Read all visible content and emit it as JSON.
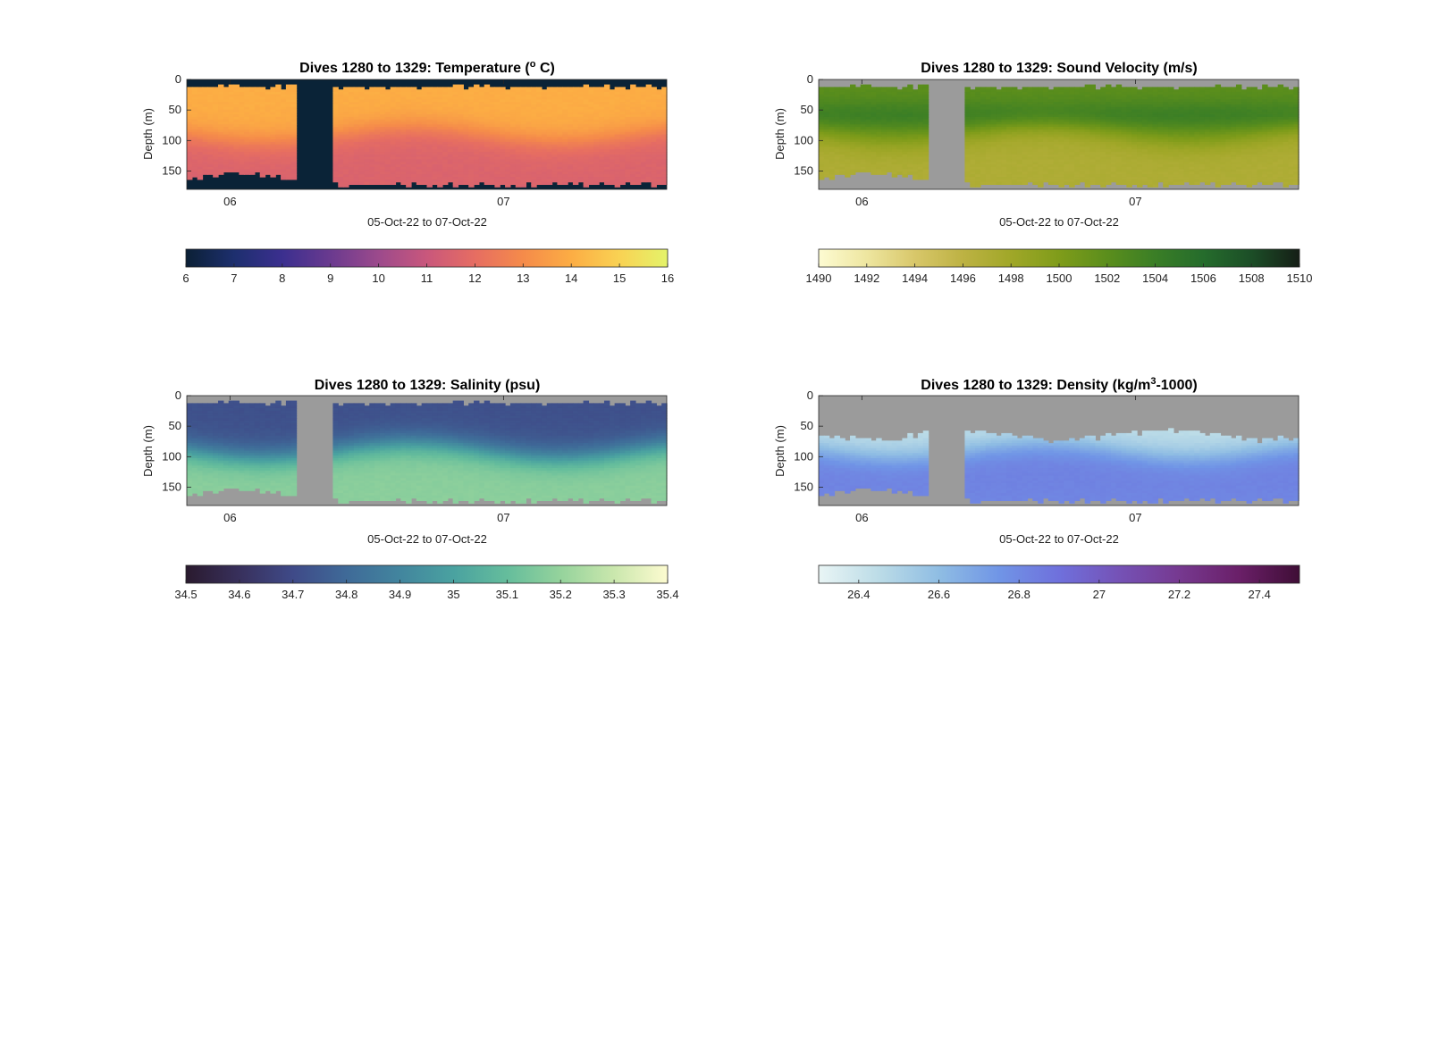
{
  "chart_data": [
    {
      "type": "heatmap",
      "title": "Dives 1280 to 1329: Temperature (° C)",
      "xlabel": "05-Oct-22 to 07-Oct-22",
      "ylabel": "Depth (m)",
      "x_tick_labels": [
        "06",
        "07"
      ],
      "y_ticks": [
        0,
        50,
        100,
        150
      ],
      "ylim": [
        0,
        180
      ],
      "y_reversed": true,
      "colorbar": {
        "min": 6,
        "max": 16,
        "ticks": [
          "6",
          "7",
          "8",
          "9",
          "10",
          "11",
          "12",
          "13",
          "14",
          "15",
          "16"
        ],
        "colors": [
          "#0b2035",
          "#1d2f6e",
          "#3b2f8f",
          "#6a3a8f",
          "#9c4a8c",
          "#c9577c",
          "#e66d62",
          "#f58b4a",
          "#fcad44",
          "#f9d253",
          "#e4f36a"
        ]
      },
      "nan_color": "#0a2337",
      "surface_value": 14.0,
      "thermocline_value": 12.8,
      "deep_value": 11.6
    },
    {
      "type": "heatmap",
      "title": "Dives 1280 to 1329: Sound Velocity (m/s)",
      "xlabel": "05-Oct-22 to 07-Oct-22",
      "ylabel": "Depth (m)",
      "x_tick_labels": [
        "06",
        "07"
      ],
      "y_ticks": [
        0,
        50,
        100,
        150
      ],
      "ylim": [
        0,
        180
      ],
      "y_reversed": true,
      "colorbar": {
        "min": 1490,
        "max": 1510,
        "ticks": [
          "1490",
          "1492",
          "1494",
          "1496",
          "1498",
          "1500",
          "1502",
          "1504",
          "1506",
          "1508",
          "1510"
        ],
        "colors": [
          "#fdfbd2",
          "#eee6a0",
          "#d8c76a",
          "#bdb243",
          "#a0a728",
          "#7f9c1a",
          "#5b8e1c",
          "#3a7e26",
          "#256c2c",
          "#1c4e27",
          "#151e16"
        ]
      },
      "nan_color": "#9b9b9b",
      "surface_value": 1502.0,
      "thermocline_value": 1504.0,
      "deep_value": 1497.0
    },
    {
      "type": "heatmap",
      "title": "Dives 1280 to 1329: Salinity (psu)",
      "xlabel": "05-Oct-22 to 07-Oct-22",
      "ylabel": "Depth (m)",
      "x_tick_labels": [
        "06",
        "07"
      ],
      "y_ticks": [
        0,
        50,
        100,
        150
      ],
      "ylim": [
        0,
        180
      ],
      "y_reversed": true,
      "colorbar": {
        "min": 34.5,
        "max": 35.4,
        "ticks": [
          "34.5",
          "34.6",
          "34.7",
          "34.8",
          "34.9",
          "35",
          "35.1",
          "35.2",
          "35.3",
          "35.4"
        ],
        "colors": [
          "#2a1a2e",
          "#38305c",
          "#3f4a88",
          "#3f6a98",
          "#42859e",
          "#4aa2a0",
          "#65bd9c",
          "#95d39c",
          "#cae7ad",
          "#fdfbd0"
        ]
      },
      "nan_color": "#9b9b9b",
      "surface_value": 34.72,
      "thermocline_value": 34.95,
      "deep_value": 35.18
    },
    {
      "type": "heatmap",
      "title": "Dives 1280 to 1329: Density (kg/m3-1000)",
      "xlabel": "05-Oct-22 to 07-Oct-22",
      "ylabel": "Depth (m)",
      "x_tick_labels": [
        "06",
        "07"
      ],
      "y_ticks": [
        0,
        50,
        100,
        150
      ],
      "ylim": [
        0,
        180
      ],
      "y_reversed": true,
      "colorbar": {
        "min": 26.3,
        "max": 27.5,
        "ticks": [
          "26.4",
          "26.6",
          "26.8",
          "27",
          "27.2",
          "27.4"
        ],
        "colors": [
          "#e9f5f5",
          "#bcdce7",
          "#8fbde3",
          "#7095e6",
          "#6f70dc",
          "#7552b6",
          "#763990",
          "#6a1f68",
          "#3f0e36"
        ]
      },
      "nan_color": "#9b9b9b",
      "surface_value": 26.45,
      "thermocline_value": 26.6,
      "deep_value": 26.82
    }
  ]
}
